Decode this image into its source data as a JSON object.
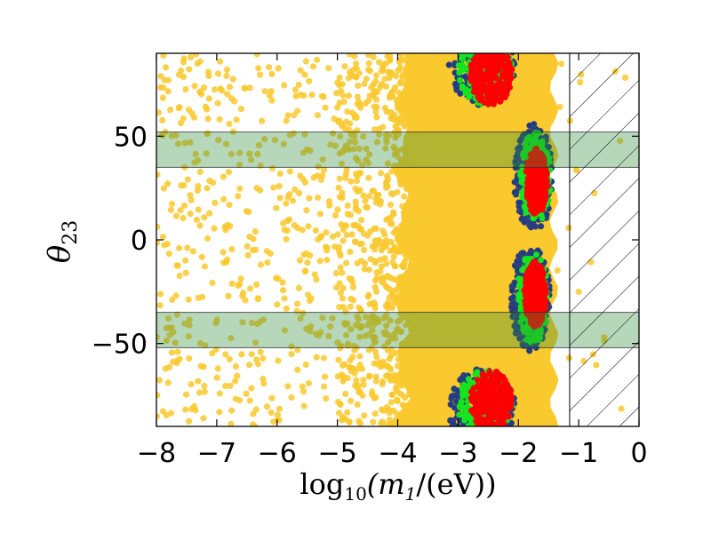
{
  "chart_data": {
    "type": "scatter",
    "xlabel_parts": {
      "pre": "log",
      "sub": "10",
      "mid": "(m",
      "sub2": "1",
      "post": "/(eV))"
    },
    "ylabel_parts": {
      "main": "θ",
      "sub": "23"
    },
    "xlim": [
      -8,
      0
    ],
    "ylim": [
      -90,
      90
    ],
    "x_ticks": [
      {
        "value": -8,
        "label": "−8"
      },
      {
        "value": -7,
        "label": "−7"
      },
      {
        "value": -6,
        "label": "−6"
      },
      {
        "value": -5,
        "label": "−5"
      },
      {
        "value": -4,
        "label": "−4"
      },
      {
        "value": -3,
        "label": "−3"
      },
      {
        "value": -2,
        "label": "−2"
      },
      {
        "value": -1,
        "label": "−1"
      },
      {
        "value": 0,
        "label": "0"
      }
    ],
    "y_ticks": [
      {
        "value": 50,
        "label": "50"
      },
      {
        "value": 0,
        "label": "0"
      },
      {
        "value": -50,
        "label": "−50"
      }
    ],
    "bands": [
      {
        "name": "allowed-theta23-upper",
        "y_range": [
          35,
          52
        ],
        "color": "#2e8b3a",
        "opacity": 0.35
      },
      {
        "name": "allowed-theta23-lower",
        "y_range": [
          -52,
          -35
        ],
        "color": "#2e8b3a",
        "opacity": 0.35
      }
    ],
    "excluded_region": {
      "name": "excluded-m1",
      "x_range": [
        -1.15,
        0
      ],
      "hatch": "diagonal"
    },
    "series": [
      {
        "name": "all-points",
        "color": "#f9c92e",
        "regions": [
          {
            "type": "sparse",
            "x_range": [
              -8,
              -3.8
            ],
            "y_range": [
              -90,
              90
            ],
            "count": 950
          },
          {
            "type": "dense",
            "x_range": [
              -4.2,
              -1.35
            ],
            "y_range": [
              -90,
              90
            ]
          },
          {
            "type": "sparse",
            "x_range": [
              -1.4,
              -0.2
            ],
            "y_range": [
              -90,
              90
            ],
            "count": 22
          }
        ]
      },
      {
        "name": "blue-set",
        "color": "#1f3a8a",
        "clusters": [
          {
            "center": [
              -2.6,
              85
            ],
            "radius": [
              0.55,
              20
            ]
          },
          {
            "center": [
              -1.75,
              30
            ],
            "radius": [
              0.32,
              26
            ]
          },
          {
            "center": [
              -1.8,
              -28
            ],
            "radius": [
              0.32,
              26
            ]
          },
          {
            "center": [
              -2.6,
              -82
            ],
            "radius": [
              0.55,
              20
            ]
          }
        ]
      },
      {
        "name": "green-set",
        "color": "#14e51e",
        "clusters": [
          {
            "center": [
              -2.55,
              82
            ],
            "radius": [
              0.45,
              17
            ]
          },
          {
            "center": [
              -1.72,
              30
            ],
            "radius": [
              0.26,
              22
            ]
          },
          {
            "center": [
              -1.76,
              -28
            ],
            "radius": [
              0.26,
              22
            ]
          },
          {
            "center": [
              -2.55,
              -80
            ],
            "radius": [
              0.45,
              17
            ]
          }
        ]
      },
      {
        "name": "red-set",
        "color": "#ff0000",
        "clusters": [
          {
            "center": [
              -2.45,
              80
            ],
            "radius": [
              0.35,
              15
            ]
          },
          {
            "center": [
              -1.7,
              28
            ],
            "radius": [
              0.18,
              16
            ]
          },
          {
            "center": [
              -1.72,
              -26
            ],
            "radius": [
              0.18,
              16
            ]
          },
          {
            "center": [
              -2.45,
              -78
            ],
            "radius": [
              0.35,
              15
            ]
          }
        ]
      }
    ]
  }
}
